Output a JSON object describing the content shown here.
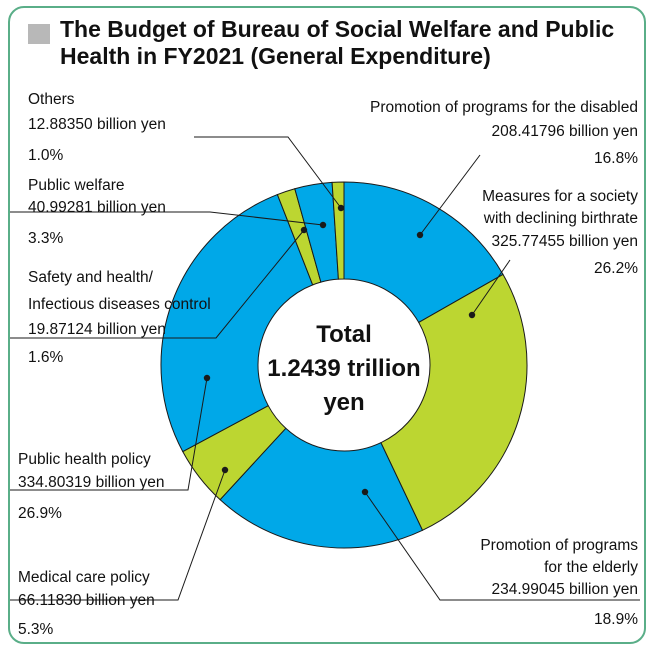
{
  "title": "The Budget of Bureau of Social Welfare and Public Health in FY2021 (General Expenditure)",
  "colors": {
    "blue": "#00a8e8",
    "green": "#bcd631",
    "border": "#5aae88"
  },
  "chart_data": {
    "type": "pie",
    "style": "donut",
    "center_label": [
      "Total",
      "1.2439 trillion",
      "yen"
    ],
    "slices": [
      {
        "id": "disabled",
        "lines": [
          "Promotion of programs for the disabled",
          "208.41796 billion yen",
          "16.8%"
        ],
        "value": 208.41796,
        "percent": 16.8,
        "color": "blue"
      },
      {
        "id": "birthrate",
        "lines": [
          "Measures for a society",
          "with declining birthrate",
          "325.77455 billion yen",
          "26.2%"
        ],
        "value": 325.77455,
        "percent": 26.2,
        "color": "green"
      },
      {
        "id": "elderly",
        "lines": [
          "Promotion of programs",
          "for the elderly",
          "234.99045 billion yen",
          "18.9%"
        ],
        "value": 234.99045,
        "percent": 18.9,
        "color": "blue"
      },
      {
        "id": "medical",
        "lines": [
          "Medical care policy",
          "66.11830 billion yen",
          "5.3%"
        ],
        "value": 66.1183,
        "percent": 5.3,
        "color": "green"
      },
      {
        "id": "publichealth",
        "lines": [
          "Public health policy",
          "334.80319 billion yen",
          "26.9%"
        ],
        "value": 334.80319,
        "percent": 26.9,
        "color": "blue"
      },
      {
        "id": "safety",
        "lines": [
          "Safety and health/",
          "Infectious diseases control",
          "19.87124 billion yen",
          "1.6%"
        ],
        "value": 19.87124,
        "percent": 1.6,
        "color": "green"
      },
      {
        "id": "welfare",
        "lines": [
          "Public welfare",
          "40.99281 billion yen",
          "3.3%"
        ],
        "value": 40.99281,
        "percent": 3.3,
        "color": "blue"
      },
      {
        "id": "others",
        "lines": [
          "Others",
          "12.88350 billion yen",
          "1.0%"
        ],
        "value": 12.8835,
        "percent": 1.0,
        "color": "green"
      }
    ]
  }
}
